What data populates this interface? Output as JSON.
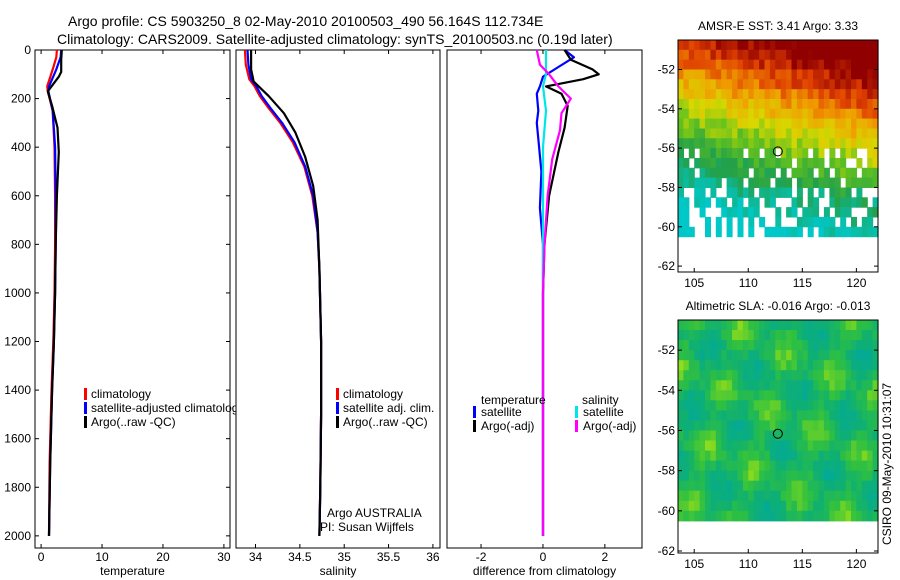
{
  "header": {
    "line1": "Argo profile: CS 5903250_8 02-May-2010 20100503_490 56.164S 112.734E",
    "line2": "Climatology: CARS2009. Satellite-adjusted climatology: synTS_20100503.nc (0.19d later)"
  },
  "side_stamp": "CSIRO 09-May-2010 10:31:07",
  "colors": {
    "climatology": "#ff0000",
    "satellite": "#0000ff",
    "argo": "#000000",
    "salinity_satellite": "#00e5e5",
    "salinity_argo": "#ff00ff",
    "float_marker": "#000000"
  },
  "chart_data": [
    {
      "id": "temperature",
      "type": "line",
      "xlabel": "temperature",
      "xlim": [
        -1,
        31
      ],
      "ylim": [
        0,
        2050
      ],
      "xticks": [
        0,
        10,
        20,
        30
      ],
      "yticks": [
        0,
        200,
        400,
        600,
        800,
        1000,
        1200,
        1400,
        1600,
        1800,
        2000
      ],
      "legend": [
        "climatology",
        "satellite-adjusted climatology",
        "Argo(..raw -QC)"
      ],
      "series": [
        {
          "name": "climatology",
          "color": "#ff0000",
          "x": [
            2.6,
            2.5,
            1.9,
            1.0,
            1.1,
            1.9,
            2.2,
            2.3,
            2.3,
            2.2,
            2.0,
            1.7,
            1.4,
            1.3
          ],
          "y": [
            0,
            30,
            80,
            150,
            170,
            250,
            400,
            600,
            800,
            1000,
            1200,
            1400,
            1700,
            2000
          ]
        },
        {
          "name": "satellite-adjusted climatology",
          "color": "#0000ff",
          "x": [
            3.3,
            3.2,
            2.5,
            1.3,
            1.2,
            1.9,
            2.3,
            2.4,
            2.4,
            2.3,
            2.1,
            1.8,
            1.5,
            1.3
          ],
          "y": [
            0,
            30,
            80,
            150,
            170,
            250,
            400,
            600,
            800,
            1000,
            1200,
            1400,
            1700,
            2000
          ]
        },
        {
          "name": "Argo(..raw -QC)",
          "color": "#000000",
          "x": [
            3.4,
            3.3,
            3.3,
            2.9,
            1.1,
            1.8,
            2.7,
            2.9,
            2.6,
            2.4,
            2.3,
            2.1,
            1.8,
            1.5,
            1.3
          ],
          "y": [
            0,
            40,
            90,
            110,
            170,
            230,
            320,
            420,
            600,
            800,
            1000,
            1200,
            1400,
            1700,
            2000
          ]
        }
      ]
    },
    {
      "id": "salinity",
      "type": "line",
      "xlabel": "salinity",
      "xlim": [
        33.78,
        36.08
      ],
      "ylim": [
        0,
        2050
      ],
      "xticks": [
        34,
        34.5,
        35,
        35.5,
        36
      ],
      "tick_labels": [
        "34",
        "34.5",
        "35",
        "35.5",
        "36"
      ],
      "legend": [
        "climatology",
        "satellite adj. clim.",
        "Argo(..raw -QC)"
      ],
      "annotation": [
        "Argo AUSTRALIA",
        "PI: Susan Wijffels"
      ],
      "series": [
        {
          "name": "climatology",
          "color": "#ff0000",
          "x": [
            33.88,
            33.89,
            33.93,
            33.99,
            34.05,
            34.15,
            34.28,
            34.42,
            34.55,
            34.64,
            34.7,
            34.72,
            34.74,
            34.74,
            34.73,
            34.72
          ],
          "y": [
            0,
            60,
            120,
            150,
            190,
            240,
            300,
            380,
            480,
            600,
            750,
            900,
            1200,
            1500,
            1800,
            2000
          ]
        },
        {
          "name": "satellite adj. clim.",
          "color": "#0000ff",
          "x": [
            33.91,
            33.92,
            33.95,
            34.01,
            34.07,
            34.17,
            34.3,
            34.44,
            34.56,
            34.65,
            34.7,
            34.72,
            34.74,
            34.74,
            34.73,
            34.72
          ],
          "y": [
            0,
            60,
            120,
            150,
            190,
            240,
            300,
            380,
            480,
            600,
            750,
            900,
            1200,
            1500,
            1800,
            2000
          ]
        },
        {
          "name": "Argo(..raw -QC)",
          "color": "#000000",
          "x": [
            33.95,
            33.95,
            33.98,
            34.15,
            34.32,
            34.45,
            34.56,
            34.65,
            34.7,
            34.72,
            34.74,
            34.74,
            34.73,
            34.72
          ],
          "y": [
            0,
            80,
            130,
            190,
            260,
            340,
            440,
            560,
            700,
            900,
            1200,
            1500,
            1800,
            2000
          ]
        }
      ]
    },
    {
      "id": "difference",
      "type": "line",
      "xlabel": "difference from climatology",
      "xlim": [
        -3.1,
        3.2
      ],
      "ylim": [
        0,
        2050
      ],
      "xticks": [
        -2,
        0,
        2
      ],
      "legend_headers": [
        "temperature",
        "salinity"
      ],
      "legend": [
        "satellite",
        "Argo(-adj)",
        "satellite",
        "Argo(-adj)"
      ],
      "series": [
        {
          "name": "temperature satellite",
          "color": "#0000ff",
          "x": [
            0.7,
            1.0,
            0.5,
            0.0,
            -0.1,
            -0.2,
            -0.15,
            -0.2,
            -0.05,
            -0.1,
            0.0,
            0.0,
            0.0,
            0.0,
            0.0
          ],
          "y": [
            0,
            30,
            70,
            110,
            150,
            180,
            250,
            300,
            500,
            650,
            800,
            1000,
            1400,
            1800,
            2000
          ]
        },
        {
          "name": "temperature Argo(-adj)",
          "color": "#000000",
          "x": [
            0.7,
            0.9,
            1.6,
            1.8,
            1.3,
            0.1,
            0.6,
            0.8,
            0.7,
            0.5,
            0.2,
            0.05,
            0.0,
            0.0,
            0.0,
            0.0
          ],
          "y": [
            0,
            40,
            80,
            100,
            120,
            150,
            180,
            230,
            320,
            420,
            600,
            800,
            1000,
            1400,
            1800,
            2000
          ]
        },
        {
          "name": "salinity satellite",
          "color": "#00e5e5",
          "x": [
            0.1,
            0.1,
            0.0,
            0.1,
            0.0,
            0.0,
            0.0,
            0.0,
            0.0
          ],
          "y": [
            0,
            100,
            150,
            250,
            400,
            800,
            1200,
            1600,
            2000
          ]
        },
        {
          "name": "salinity Argo(-adj)",
          "color": "#ff00ff",
          "x": [
            -0.2,
            -0.1,
            0.2,
            0.5,
            0.9,
            0.6,
            0.55,
            0.3,
            0.15,
            0.05,
            0.0,
            0.0,
            0.0
          ],
          "y": [
            0,
            60,
            100,
            150,
            200,
            260,
            330,
            450,
            600,
            800,
            1000,
            1500,
            2000
          ]
        }
      ]
    },
    {
      "id": "sst_map",
      "type": "heatmap",
      "title": "AMSR-E SST: 3.41 Argo: 3.33",
      "xlim": [
        103.5,
        122
      ],
      "ylim": [
        -62.3,
        -50.5
      ],
      "xticks": [
        105,
        110,
        115,
        120
      ],
      "yticks": [
        -52,
        -54,
        -56,
        -58,
        -60,
        -62
      ],
      "marker": [
        112.734,
        -56.164
      ]
    },
    {
      "id": "sla_map",
      "type": "heatmap",
      "title": "Altimetric SLA: -0.016 Argo: -0.013",
      "xlim": [
        103.5,
        122
      ],
      "ylim": [
        -62.1,
        -50.5
      ],
      "xticks": [
        105,
        110,
        115,
        120
      ],
      "yticks": [
        -52,
        -54,
        -56,
        -58,
        -60,
        -62
      ],
      "marker": [
        112.734,
        -56.164
      ]
    }
  ]
}
